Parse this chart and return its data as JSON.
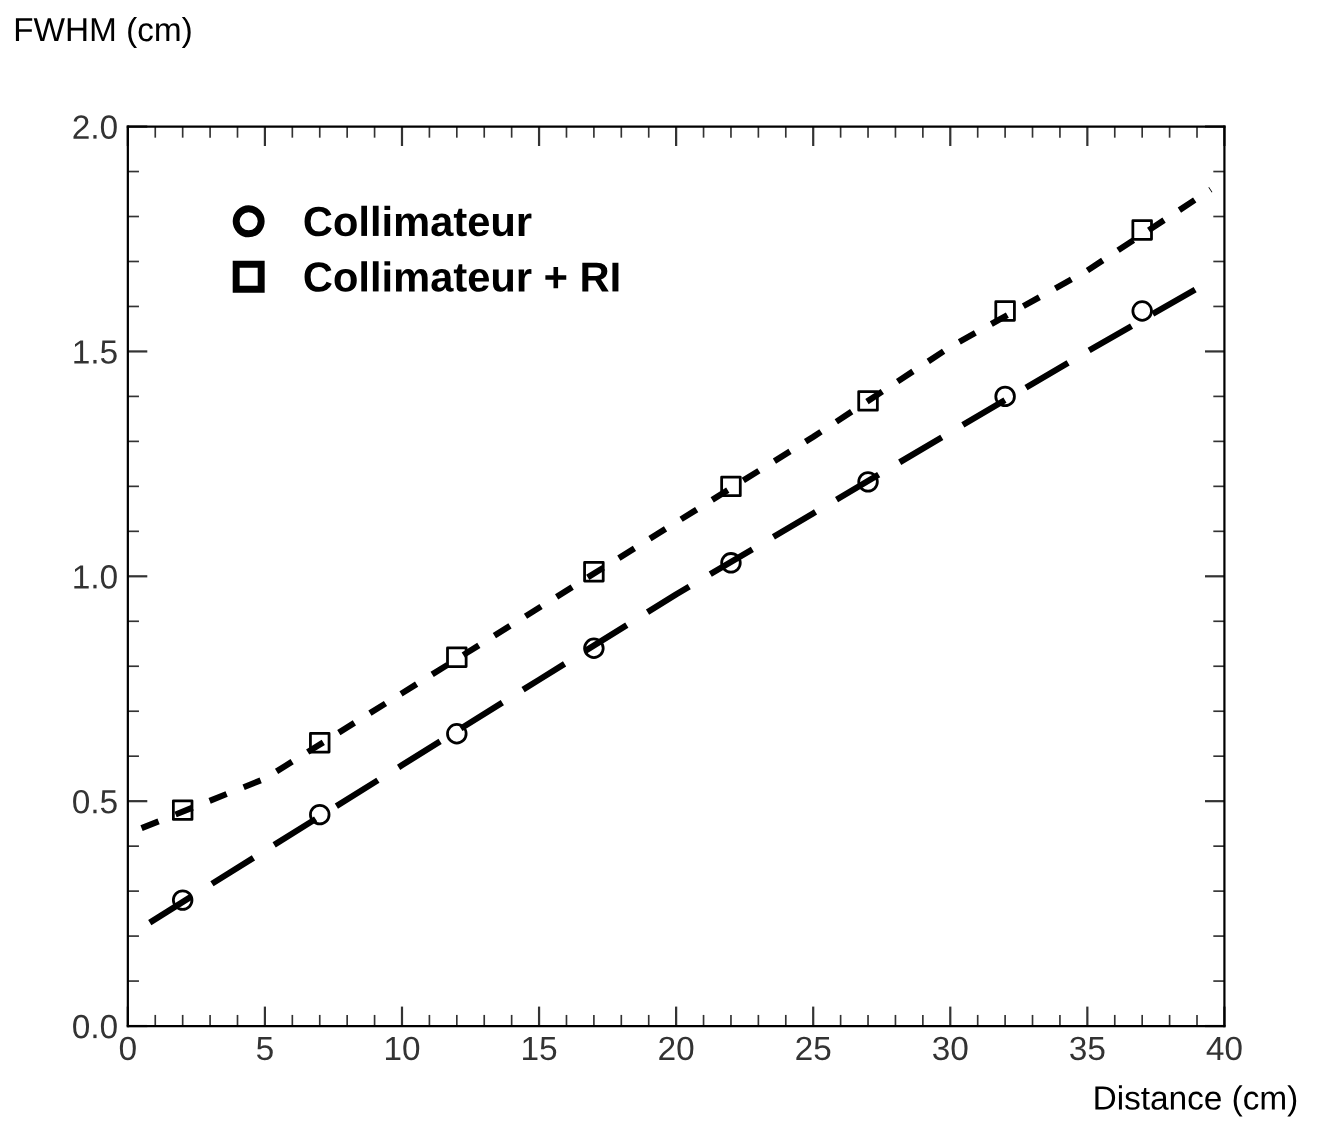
{
  "chart_data": {
    "type": "scatter",
    "xlabel": "Distance (cm)",
    "ylabel": "FWHM (cm)",
    "xlim": [
      0,
      40
    ],
    "xticks": [
      0,
      5,
      10,
      15,
      20,
      25,
      30,
      35,
      40
    ],
    "ylim": [
      0,
      2.0
    ],
    "yticks": [
      {
        "value": 0,
        "label": "0.0"
      },
      {
        "value": 0.5,
        "label": "0.5"
      },
      {
        "value": 1.0,
        "label": "1.0"
      },
      {
        "value": 1.5,
        "label": "1.5"
      },
      {
        "value": 2.0,
        "label": "2.0"
      }
    ],
    "grid": false,
    "legend": "top left",
    "series": [
      {
        "name": "Collimateur",
        "marker": "circle",
        "color": "#000000",
        "x": [
          2,
          7,
          12,
          17,
          22,
          27,
          32,
          37
        ],
        "values": [
          0.28,
          0.47,
          0.65,
          0.84,
          1.03,
          1.21,
          1.4,
          1.59
        ]
      },
      {
        "name": "Collimateur + RI",
        "marker": "square",
        "color": "#000000",
        "x": [
          2,
          7,
          12,
          17,
          22,
          27,
          32,
          37
        ],
        "values": [
          0.48,
          0.63,
          0.82,
          1.01,
          1.2,
          1.39,
          1.59,
          1.77
        ]
      },
      {
        "type": "line",
        "line_style": "dashed",
        "color": "#000000",
        "x": [
          0.8,
          5,
          10,
          15,
          20,
          25,
          30,
          35,
          39
        ],
        "values": [
          0.23,
          0.39,
          0.58,
          0.77,
          0.96,
          1.14,
          1.32,
          1.5,
          1.64
        ]
      },
      {
        "type": "line",
        "line_style": "dotted",
        "color": "#000000",
        "x": [
          0.5,
          5,
          10,
          15,
          20,
          25,
          30,
          35,
          39.5
        ],
        "values": [
          0.44,
          0.55,
          0.74,
          0.93,
          1.12,
          1.31,
          1.51,
          1.68,
          1.86
        ]
      }
    ]
  }
}
